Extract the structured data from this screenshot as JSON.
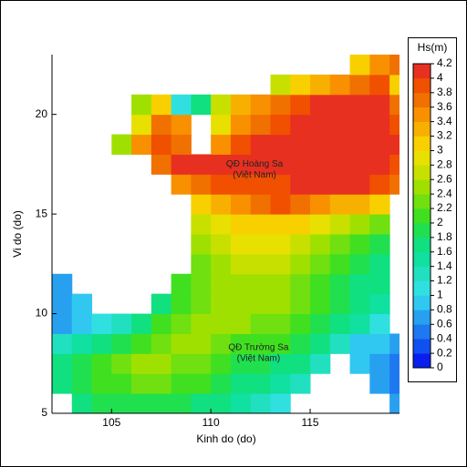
{
  "chart_data": {
    "type": "heatmap",
    "xlabel": "Kinh do (do)",
    "ylabel": "Vi do (do)",
    "xlim": [
      102,
      119.5
    ],
    "ylim": [
      5,
      23
    ],
    "xticks": [
      105,
      110,
      115
    ],
    "yticks": [
      5,
      10,
      15,
      20
    ],
    "x": [
      102.5,
      103.5,
      104.5,
      105.5,
      106.5,
      107.5,
      108.5,
      109.5,
      110.5,
      111.5,
      112.5,
      113.5,
      114.5,
      115.5,
      116.5,
      117.5,
      118.5,
      119.5
    ],
    "y": [
      5.5,
      6.5,
      7.5,
      8.5,
      9.5,
      10.5,
      11.5,
      12.5,
      13.5,
      14.5,
      15.5,
      16.5,
      17.5,
      18.5,
      19.5,
      20.5,
      21.5,
      22.5
    ],
    "values": [
      [
        null,
        1.6,
        1.8,
        1.8,
        1.8,
        1.8,
        1.8,
        1.6,
        1.6,
        1.4,
        1.2,
        1.0,
        null,
        null,
        null,
        null,
        null,
        0.6
      ],
      [
        1.6,
        1.8,
        2.0,
        2.0,
        2.2,
        2.2,
        2.0,
        2.0,
        1.8,
        1.6,
        1.6,
        1.4,
        1.2,
        null,
        null,
        null,
        0.6,
        0.4
      ],
      [
        1.6,
        1.8,
        2.0,
        2.2,
        2.4,
        2.4,
        2.2,
        2.2,
        2.0,
        1.8,
        1.8,
        1.6,
        1.6,
        1.2,
        null,
        0.8,
        0.6,
        0.4
      ],
      [
        1.2,
        1.4,
        1.6,
        1.8,
        2.0,
        2.2,
        2.4,
        2.4,
        2.2,
        2.0,
        2.0,
        2.0,
        1.8,
        1.6,
        1.2,
        0.8,
        0.8,
        0.6
      ],
      [
        0.6,
        0.8,
        1.0,
        1.2,
        1.6,
        2.0,
        2.2,
        2.4,
        2.4,
        2.4,
        2.2,
        2.2,
        2.0,
        1.8,
        1.6,
        1.4,
        1.0,
        null
      ],
      [
        0.6,
        0.8,
        null,
        null,
        null,
        1.6,
        2.0,
        2.2,
        2.4,
        2.4,
        2.4,
        2.4,
        2.2,
        2.0,
        1.8,
        1.6,
        1.4,
        null
      ],
      [
        0.6,
        null,
        null,
        null,
        null,
        null,
        2.0,
        2.2,
        2.4,
        2.4,
        2.4,
        2.4,
        2.2,
        2.0,
        1.8,
        1.6,
        1.6,
        null
      ],
      [
        null,
        null,
        null,
        null,
        null,
        null,
        null,
        2.2,
        2.4,
        2.6,
        2.6,
        2.6,
        2.4,
        2.2,
        2.0,
        1.8,
        1.6,
        null
      ],
      [
        null,
        null,
        null,
        null,
        null,
        null,
        null,
        2.4,
        2.6,
        2.8,
        2.8,
        2.8,
        2.6,
        2.4,
        2.2,
        2.0,
        1.8,
        null
      ],
      [
        null,
        null,
        null,
        null,
        null,
        null,
        null,
        2.6,
        2.8,
        3.0,
        3.0,
        3.0,
        3.0,
        2.8,
        2.6,
        2.4,
        2.2,
        null
      ],
      [
        null,
        null,
        null,
        null,
        null,
        null,
        null,
        3.0,
        3.2,
        3.4,
        3.6,
        3.8,
        3.6,
        3.4,
        3.2,
        3.2,
        3.0,
        null
      ],
      [
        null,
        null,
        null,
        null,
        null,
        null,
        3.4,
        3.6,
        3.8,
        3.8,
        3.8,
        3.8,
        4.0,
        4.0,
        4.0,
        4.0,
        3.8,
        3.6
      ],
      [
        null,
        null,
        null,
        null,
        null,
        3.6,
        4.0,
        4.0,
        4.0,
        4.0,
        4.0,
        4.0,
        4.0,
        4.0,
        4.0,
        4.0,
        4.0,
        3.8
      ],
      [
        null,
        null,
        null,
        2.4,
        3.4,
        3.8,
        3.6,
        null,
        3.4,
        3.8,
        4.0,
        4.0,
        4.0,
        4.0,
        4.0,
        4.0,
        4.0,
        4.0
      ],
      [
        null,
        null,
        null,
        null,
        2.8,
        3.6,
        3.4,
        null,
        2.8,
        3.4,
        3.6,
        3.8,
        4.0,
        4.0,
        4.0,
        4.0,
        4.0,
        3.8
      ],
      [
        null,
        null,
        null,
        null,
        2.4,
        3.0,
        1.0,
        1.6,
        2.6,
        3.2,
        3.4,
        3.6,
        3.8,
        4.0,
        4.0,
        4.0,
        4.0,
        3.6
      ],
      [
        null,
        null,
        null,
        null,
        null,
        null,
        null,
        null,
        null,
        null,
        null,
        2.6,
        3.0,
        3.2,
        3.4,
        3.6,
        3.8,
        3.0
      ],
      [
        null,
        null,
        null,
        null,
        null,
        null,
        null,
        null,
        null,
        null,
        null,
        null,
        null,
        null,
        null,
        3.0,
        3.4,
        3.6
      ]
    ],
    "colorbar": {
      "title": "Hs(m)",
      "ticks": [
        0,
        0.2,
        0.4,
        0.6,
        0.8,
        1,
        1.2,
        1.4,
        1.6,
        1.8,
        2,
        2.2,
        2.4,
        2.6,
        2.8,
        3,
        3.2,
        3.4,
        3.6,
        3.8,
        4,
        4.2
      ],
      "colors": [
        "#0a1ef0",
        "#1050f0",
        "#1e78f0",
        "#28a0f0",
        "#30c8f0",
        "#30e0e0",
        "#20e0c0",
        "#10e0a0",
        "#10e080",
        "#20e050",
        "#40e020",
        "#70e010",
        "#a0e000",
        "#c8e000",
        "#e8e000",
        "#f8d000",
        "#f8b000",
        "#f89000",
        "#f07000",
        "#f05000",
        "#e83020"
      ]
    },
    "annotations": [
      {
        "lines": [
          "QĐ Hoàng Sa",
          "(Việt Nam)"
        ]
      },
      {
        "lines": [
          "QĐ Trường Sa",
          "(Việt Nam)"
        ]
      }
    ]
  }
}
